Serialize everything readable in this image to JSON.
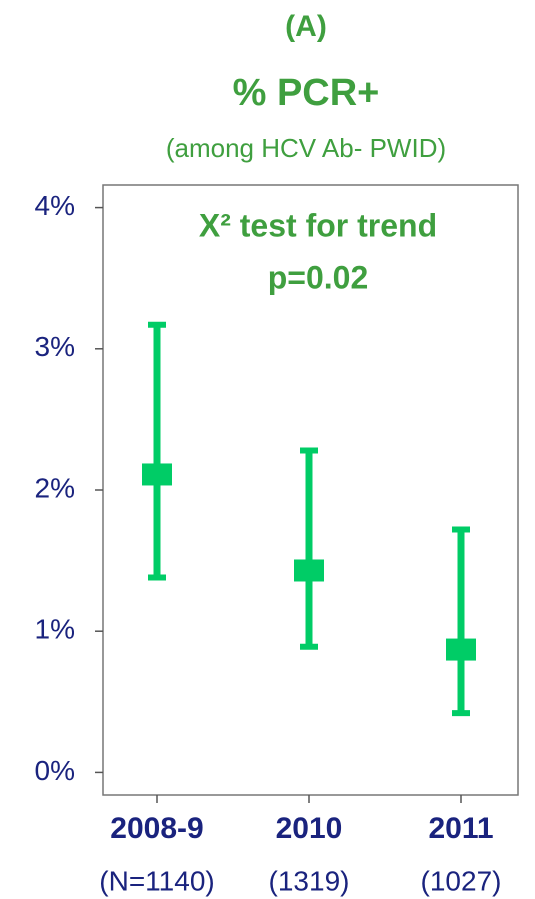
{
  "chart_data": {
    "type": "errorbar",
    "title": "(A)",
    "subtitle": "% PCR+",
    "subtitle2": "(among HCV Ab- PWID)",
    "annotations": [
      "X² test for trend",
      "p=0.02"
    ],
    "categories": [
      "2008-9",
      "2010",
      "2011"
    ],
    "category_sublabels": [
      "(N=1140)",
      "(1319)",
      "(1027)"
    ],
    "series": [
      {
        "color": "#00cc66",
        "values": [
          2.11,
          1.43,
          0.87
        ],
        "lower": [
          1.38,
          0.89,
          0.42
        ],
        "upper": [
          3.17,
          2.28,
          1.72
        ]
      }
    ],
    "ylim": [
      -0.16,
      4.16
    ],
    "yticks": [
      {
        "value": 0,
        "label": "0%"
      },
      {
        "value": 1,
        "label": "1%"
      },
      {
        "value": 2,
        "label": "2%"
      },
      {
        "value": 3,
        "label": "3%"
      },
      {
        "value": 4,
        "label": "4%"
      }
    ],
    "text_color": "#3f9f3f",
    "axis_color": "#1a237e"
  }
}
